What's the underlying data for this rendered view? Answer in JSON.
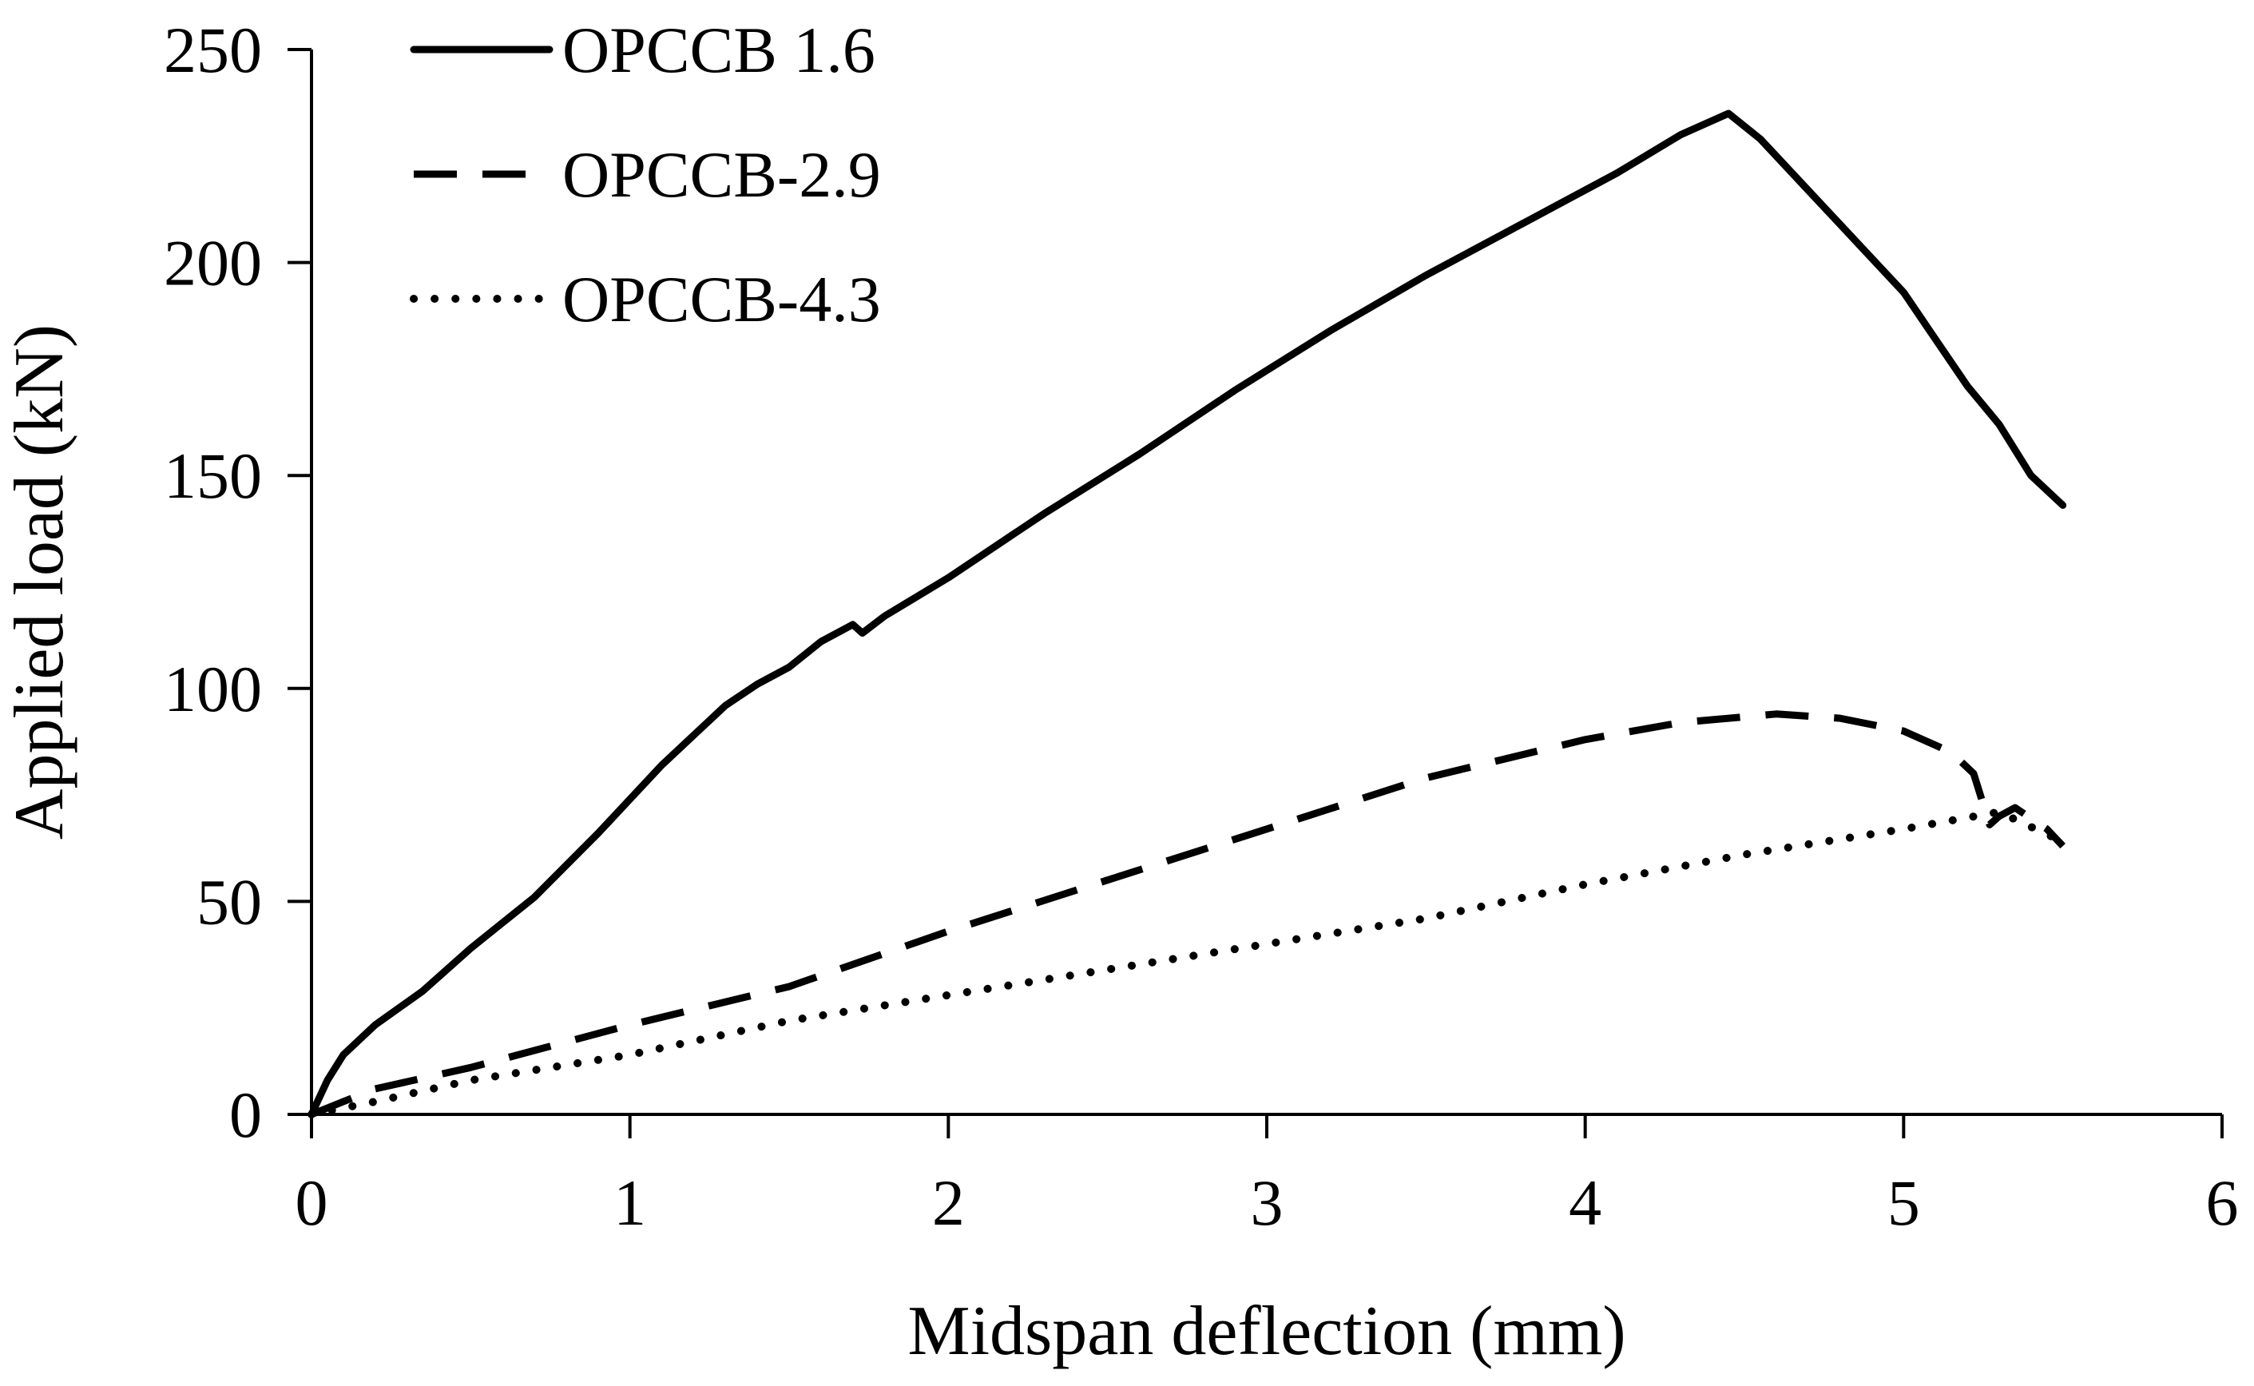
{
  "chart_data": {
    "type": "line",
    "title": "",
    "xlabel": "Midspan deflection (mm)",
    "ylabel": "Applied load (kN)",
    "xlim": [
      0,
      6
    ],
    "ylim": [
      0,
      250
    ],
    "x_ticks": [
      "0",
      "1",
      "2",
      "3",
      "4",
      "5",
      "6"
    ],
    "y_ticks": [
      "0",
      "50",
      "100",
      "150",
      "200",
      "250"
    ],
    "legend_position": "top-left",
    "series": [
      {
        "name": "OPCCB 1.6",
        "style": "solid",
        "color": "#000000",
        "points": [
          [
            0,
            0
          ],
          [
            0.05,
            8
          ],
          [
            0.1,
            14
          ],
          [
            0.2,
            21
          ],
          [
            0.35,
            29
          ],
          [
            0.5,
            39
          ],
          [
            0.7,
            51
          ],
          [
            0.9,
            66
          ],
          [
            1.1,
            82
          ],
          [
            1.3,
            96
          ],
          [
            1.4,
            101
          ],
          [
            1.5,
            105
          ],
          [
            1.6,
            111
          ],
          [
            1.7,
            115
          ],
          [
            1.73,
            113
          ],
          [
            1.8,
            117
          ],
          [
            2.0,
            126
          ],
          [
            2.3,
            141
          ],
          [
            2.6,
            155
          ],
          [
            2.9,
            170
          ],
          [
            3.2,
            184
          ],
          [
            3.5,
            197
          ],
          [
            3.8,
            209
          ],
          [
            4.1,
            221
          ],
          [
            4.3,
            230
          ],
          [
            4.45,
            235
          ],
          [
            4.55,
            229
          ],
          [
            4.7,
            217
          ],
          [
            5.0,
            193
          ],
          [
            5.1,
            182
          ],
          [
            5.2,
            171
          ],
          [
            5.3,
            162
          ],
          [
            5.4,
            150
          ],
          [
            5.5,
            143
          ]
        ]
      },
      {
        "name": "OPCCB-2.9",
        "style": "dashed",
        "color": "#000000",
        "points": [
          [
            0,
            0
          ],
          [
            0.2,
            6
          ],
          [
            0.5,
            11
          ],
          [
            1.0,
            21
          ],
          [
            1.5,
            30
          ],
          [
            2.0,
            43
          ],
          [
            2.5,
            55
          ],
          [
            3.0,
            67
          ],
          [
            3.5,
            79
          ],
          [
            4.0,
            88
          ],
          [
            4.3,
            92
          ],
          [
            4.6,
            94
          ],
          [
            4.8,
            93
          ],
          [
            5.0,
            90
          ],
          [
            5.15,
            85
          ],
          [
            5.22,
            80
          ],
          [
            5.27,
            68
          ],
          [
            5.3,
            70
          ],
          [
            5.35,
            72
          ],
          [
            5.45,
            67
          ],
          [
            5.5,
            63
          ]
        ]
      },
      {
        "name": "OPCCB-4.3",
        "style": "dotted",
        "color": "#000000",
        "points": [
          [
            0,
            0
          ],
          [
            0.2,
            3
          ],
          [
            0.5,
            8
          ],
          [
            1.0,
            14
          ],
          [
            1.5,
            22
          ],
          [
            2.0,
            28
          ],
          [
            2.5,
            34
          ],
          [
            3.0,
            40
          ],
          [
            3.5,
            46
          ],
          [
            4.0,
            54
          ],
          [
            4.5,
            61
          ],
          [
            5.0,
            67
          ],
          [
            5.3,
            71
          ],
          [
            5.5,
            64
          ]
        ]
      }
    ]
  }
}
